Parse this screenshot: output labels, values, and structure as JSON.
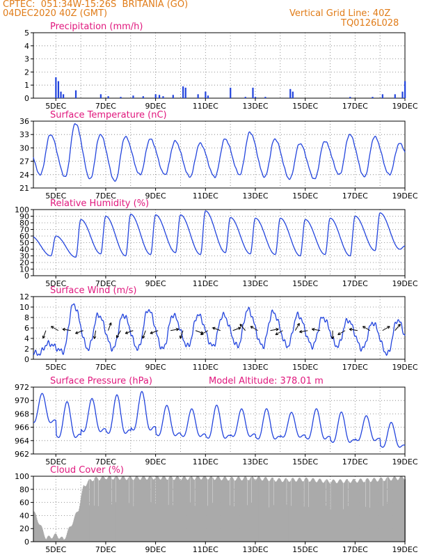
{
  "header": {
    "line1_left": "CPTEC:  051:34W-15:26S  BRITANIA (GO)",
    "line2_left": "04DEC2020 40Z (GMT)",
    "line1_right": "Vertical Grid Line: 40Z",
    "line2_right": "TQ0126L028"
  },
  "colors": {
    "header": "#e07b17",
    "panel_title": "#e0177d",
    "line": "#2244dd",
    "bar": "#2244dd",
    "cloud": "#aaaaaa",
    "axis": "#000000",
    "grid": "#777777"
  },
  "x_labels": [
    "5DEC",
    "7DEC",
    "9DEC",
    "11DEC",
    "13DEC",
    "15DEC",
    "17DEC",
    "19DEC"
  ],
  "chart_data": [
    {
      "id": "precip",
      "type": "bar",
      "title": "Precipitation (mm/h)",
      "ylim": [
        0,
        5
      ],
      "yticks": [
        0,
        1,
        2,
        3,
        4,
        5
      ],
      "x_range_days": [
        4.1,
        19.0
      ],
      "bars": [
        [
          5.0,
          1.6
        ],
        [
          5.1,
          1.3
        ],
        [
          5.2,
          0.5
        ],
        [
          5.3,
          0.3
        ],
        [
          5.8,
          0.6
        ],
        [
          6.8,
          0.3
        ],
        [
          7.1,
          0.15
        ],
        [
          7.6,
          0.1
        ],
        [
          8.1,
          0.2
        ],
        [
          8.5,
          0.15
        ],
        [
          9.0,
          0.3
        ],
        [
          9.15,
          0.25
        ],
        [
          9.3,
          0.15
        ],
        [
          9.7,
          0.25
        ],
        [
          10.1,
          0.9
        ],
        [
          10.2,
          0.8
        ],
        [
          10.7,
          0.3
        ],
        [
          11.0,
          0.5
        ],
        [
          11.1,
          0.2
        ],
        [
          12.0,
          0.8
        ],
        [
          12.6,
          0.1
        ],
        [
          12.9,
          0.8
        ],
        [
          13.0,
          0.1
        ],
        [
          13.4,
          0.1
        ],
        [
          14.4,
          0.7
        ],
        [
          14.5,
          0.5
        ],
        [
          16.8,
          0.1
        ],
        [
          17.7,
          0.1
        ],
        [
          18.1,
          0.3
        ],
        [
          18.6,
          0.3
        ],
        [
          18.9,
          0.5
        ],
        [
          19.0,
          1.3
        ]
      ]
    },
    {
      "id": "temp",
      "type": "line",
      "title": "Surface Temperature (nC)",
      "ylim": [
        21,
        36
      ],
      "yticks": [
        21,
        24,
        27,
        30,
        33,
        36
      ],
      "min": [
        24,
        23.5,
        23,
        22.5,
        24,
        24,
        23.5,
        23.5,
        24,
        23.5,
        23,
        23,
        24,
        23.5,
        24
      ],
      "max": [
        33,
        35.5,
        33,
        32.5,
        32,
        31.5,
        31,
        32,
        33.5,
        32,
        31,
        31.5,
        33,
        32.5,
        31
      ]
    },
    {
      "id": "rh",
      "type": "line",
      "title": "Relative Humidity (%)",
      "ylim": [
        0,
        100
      ],
      "yticks": [
        0,
        10,
        20,
        30,
        40,
        50,
        60,
        70,
        80,
        90,
        100
      ],
      "max": [
        60,
        85,
        90,
        93,
        92,
        92,
        98,
        88,
        87,
        87,
        85,
        87,
        90,
        95,
        45
      ],
      "min": [
        30,
        28,
        33,
        30,
        32,
        35,
        32,
        35,
        33,
        32,
        30,
        32,
        30,
        38,
        40
      ]
    },
    {
      "id": "wind",
      "type": "line",
      "title": "Surface Wind (m/s)",
      "ylim": [
        0,
        12
      ],
      "yticks": [
        0,
        2,
        4,
        6,
        8,
        10,
        12
      ],
      "peaks": [
        3,
        10.5,
        8.5,
        8.5,
        9.5,
        8.5,
        8.5,
        8.5,
        9.5,
        9,
        8.5,
        8,
        7.5,
        7,
        7.5
      ],
      "troughs": [
        1,
        1.5,
        2,
        2,
        2,
        2,
        2.5,
        2.5,
        2.5,
        2.5,
        2.5,
        2.5,
        2.5,
        2,
        1
      ]
    },
    {
      "id": "press",
      "type": "line",
      "title": "Surface Pressure (hPa)",
      "annotation": "Model Altitude: 378.01 m",
      "ylim": [
        962,
        972
      ],
      "yticks": [
        962,
        964,
        966,
        968,
        970,
        972
      ],
      "max": [
        970.8,
        969.5,
        970,
        970.5,
        971,
        969,
        968.5,
        969,
        968.5,
        968.5,
        968,
        968.5,
        968,
        967.5,
        966.5
      ],
      "min": [
        965.5,
        963,
        964,
        963.5,
        964,
        963.5,
        963.5,
        963,
        963.5,
        963,
        963.5,
        963,
        962.5,
        963,
        962
      ]
    },
    {
      "id": "cloud",
      "type": "area",
      "title": "Cloud Cover (%)",
      "ylim": [
        0,
        100
      ],
      "yticks": [
        0,
        20,
        40,
        60,
        80,
        100
      ],
      "profile": [
        [
          4.1,
          45
        ],
        [
          4.3,
          30
        ],
        [
          4.6,
          5
        ],
        [
          5.0,
          10
        ],
        [
          5.3,
          3
        ],
        [
          5.6,
          25
        ],
        [
          5.9,
          50
        ],
        [
          6.1,
          85
        ],
        [
          6.4,
          95
        ],
        [
          7.0,
          98
        ],
        [
          8.0,
          97
        ],
        [
          9.0,
          98
        ],
        [
          10.0,
          97
        ],
        [
          11.0,
          98
        ],
        [
          12.0,
          96
        ],
        [
          13.0,
          97
        ],
        [
          14.0,
          94
        ],
        [
          15.0,
          95
        ],
        [
          16.0,
          92
        ],
        [
          17.0,
          93
        ],
        [
          18.0,
          95
        ],
        [
          19.0,
          98
        ]
      ]
    }
  ]
}
